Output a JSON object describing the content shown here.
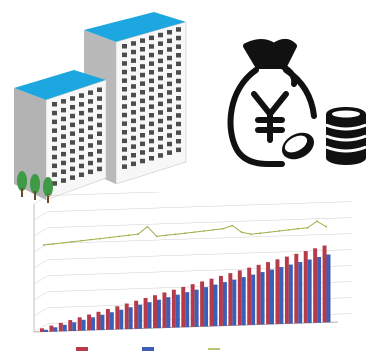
{
  "colors": {
    "building_roof": "#1da7e0",
    "building_wall": "#f2f2f2",
    "building_shadow": "#9a9a9a",
    "window": "#4c4c4c",
    "tree": "#3f9a46",
    "icon_black": "#111111",
    "bar_blue": "#3b5fb6",
    "bar_red": "#b73a4a",
    "line_olive": "#9bb24a",
    "grid": "#cfcfcf"
  },
  "icons": {
    "buildings": "apartment-buildings-icon",
    "money": "money-bag-yen-coins-icon"
  },
  "chart_data": {
    "type": "bar",
    "title": "",
    "series": [
      {
        "name": "",
        "color": "#3b5fb6",
        "values": [
          1,
          2,
          3,
          4,
          5,
          6,
          7,
          8,
          9,
          10,
          11,
          12,
          13,
          14,
          15,
          16,
          17,
          18,
          19,
          20,
          21,
          22,
          23,
          24,
          25,
          26,
          27,
          28,
          29,
          30,
          31
        ]
      },
      {
        "name": "",
        "color": "#b73a4a",
        "values": [
          1.5,
          2.5,
          3.5,
          4.5,
          5.5,
          6.5,
          7.5,
          8.5,
          9.5,
          10.5,
          11.5,
          12.5,
          13.5,
          14.5,
          15.5,
          16.5,
          17.5,
          18.5,
          19.5,
          20.5,
          21.5,
          22.5,
          23.5,
          24.5,
          25.5,
          26.5,
          27.5,
          28.5,
          29.5,
          30.5,
          31.5
        ]
      },
      {
        "name": "",
        "color": "#9bb24a",
        "type": "line",
        "values": [
          62,
          63,
          64,
          65,
          66,
          67,
          68,
          69,
          70,
          71,
          72,
          79,
          70,
          71,
          72,
          73,
          74,
          75,
          76,
          77,
          80,
          74,
          72,
          73,
          74,
          75,
          76,
          77,
          78,
          84,
          79
        ]
      }
    ],
    "grid": true,
    "legend": "bottom"
  }
}
